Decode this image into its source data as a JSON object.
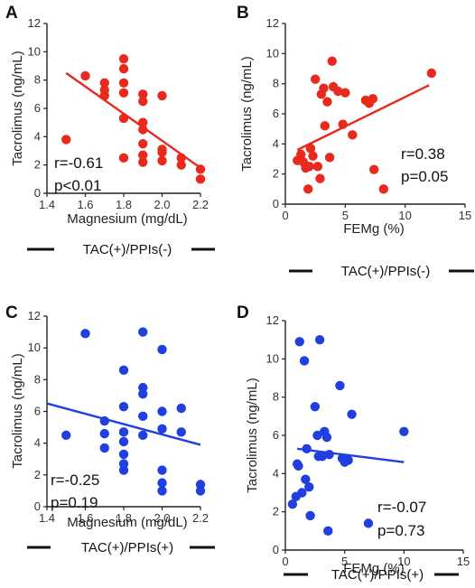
{
  "chart_data": [
    {
      "type": "scatter",
      "panel": "A",
      "xlabel": "Magnesium (mg/dL)",
      "ylabel": "Tacrolimus (ng/mL)",
      "xlim": [
        1.4,
        2.2
      ],
      "ylim": [
        0,
        12
      ],
      "xticks": [
        "1.4",
        "1.6",
        "1.8",
        "2.0",
        "2.2"
      ],
      "yticks": [
        "0",
        "2",
        "4",
        "6",
        "8",
        "10",
        "12"
      ],
      "color": "#e8291c",
      "stats": [
        "r=-0.61",
        "p<0.01"
      ],
      "group_label": "TAC(+)/PPIs(-)",
      "fit": [
        [
          1.5,
          8.5
        ],
        [
          2.2,
          1.8
        ]
      ],
      "points": [
        [
          1.5,
          3.8
        ],
        [
          1.6,
          8.3
        ],
        [
          1.7,
          7.8
        ],
        [
          1.7,
          7.3
        ],
        [
          1.7,
          6.9
        ],
        [
          1.8,
          9.5
        ],
        [
          1.8,
          8.8
        ],
        [
          1.8,
          7.8
        ],
        [
          1.8,
          7.1
        ],
        [
          1.8,
          5.3
        ],
        [
          1.8,
          2.5
        ],
        [
          1.9,
          7.0
        ],
        [
          1.9,
          6.5
        ],
        [
          1.9,
          5.0
        ],
        [
          1.9,
          4.5
        ],
        [
          1.9,
          3.5
        ],
        [
          1.9,
          2.7
        ],
        [
          1.9,
          2.2
        ],
        [
          2.0,
          6.9
        ],
        [
          2.0,
          3.1
        ],
        [
          2.0,
          2.9
        ],
        [
          2.0,
          2.3
        ],
        [
          2.1,
          2.5
        ],
        [
          2.1,
          2.0
        ],
        [
          2.2,
          1.7
        ],
        [
          2.2,
          1.0
        ]
      ]
    },
    {
      "type": "scatter",
      "panel": "B",
      "xlabel": "FEMg (%)",
      "ylabel": "Tacrolimus (ng/mL)",
      "xlim": [
        0,
        15
      ],
      "ylim": [
        0,
        12
      ],
      "xticks": [
        "0",
        "5",
        "10",
        "15"
      ],
      "yticks": [
        "0",
        "2",
        "4",
        "6",
        "8",
        "10",
        "12"
      ],
      "color": "#e8291c",
      "stats": [
        "r=0.38",
        "p=0.05"
      ],
      "group_label": "TAC(+)/PPIs(-)",
      "fit": [
        [
          1.0,
          3.6
        ],
        [
          12.0,
          7.9
        ]
      ],
      "points": [
        [
          1.0,
          2.9
        ],
        [
          1.3,
          3.3
        ],
        [
          1.5,
          2.8
        ],
        [
          1.7,
          2.4
        ],
        [
          1.9,
          1.0
        ],
        [
          2.0,
          2.5
        ],
        [
          2.1,
          3.7
        ],
        [
          2.3,
          3.2
        ],
        [
          2.5,
          8.3
        ],
        [
          2.7,
          2.5
        ],
        [
          2.9,
          1.7
        ],
        [
          3.0,
          7.3
        ],
        [
          3.2,
          7.7
        ],
        [
          3.3,
          5.2
        ],
        [
          3.5,
          6.8
        ],
        [
          3.7,
          3.1
        ],
        [
          3.9,
          9.5
        ],
        [
          4.0,
          7.8
        ],
        [
          4.4,
          7.5
        ],
        [
          4.8,
          5.3
        ],
        [
          5.0,
          7.4
        ],
        [
          5.6,
          4.6
        ],
        [
          6.7,
          6.9
        ],
        [
          7.0,
          6.7
        ],
        [
          7.3,
          7.0
        ],
        [
          7.4,
          2.3
        ],
        [
          8.2,
          1.0
        ],
        [
          12.2,
          8.7
        ]
      ]
    },
    {
      "type": "scatter",
      "panel": "C",
      "xlabel": "Magnesium (mg/dL)",
      "ylabel": "Tacrolimus (ng/mL)",
      "xlim": [
        1.4,
        2.2
      ],
      "ylim": [
        0,
        12
      ],
      "xticks": [
        "1.4",
        "1.6",
        "1.8",
        "2.0",
        "2.2"
      ],
      "yticks": [
        "0",
        "2",
        "4",
        "6",
        "8",
        "10",
        "12"
      ],
      "color": "#1f3fe0",
      "stats": [
        "r=-0.25",
        "p=0.19"
      ],
      "group_label": "TAC(+)/PPIs(+)",
      "fit": [
        [
          1.4,
          6.5
        ],
        [
          2.2,
          3.9
        ]
      ],
      "points": [
        [
          1.5,
          4.5
        ],
        [
          1.6,
          10.9
        ],
        [
          1.7,
          5.4
        ],
        [
          1.7,
          4.6
        ],
        [
          1.7,
          3.7
        ],
        [
          1.8,
          8.6
        ],
        [
          1.8,
          6.3
        ],
        [
          1.8,
          4.7
        ],
        [
          1.8,
          4.1
        ],
        [
          1.8,
          3.3
        ],
        [
          1.8,
          2.7
        ],
        [
          1.8,
          2.3
        ],
        [
          1.9,
          11.0
        ],
        [
          1.9,
          7.5
        ],
        [
          1.9,
          7.1
        ],
        [
          1.9,
          5.7
        ],
        [
          1.9,
          4.5
        ],
        [
          2.0,
          9.9
        ],
        [
          2.0,
          6.0
        ],
        [
          2.0,
          4.9
        ],
        [
          2.0,
          2.3
        ],
        [
          2.0,
          1.5
        ],
        [
          2.0,
          1.0
        ],
        [
          2.1,
          6.2
        ],
        [
          2.1,
          4.7
        ],
        [
          2.2,
          1.4
        ],
        [
          2.2,
          1.0
        ]
      ]
    },
    {
      "type": "scatter",
      "panel": "D",
      "xlabel": "FEMg (%)",
      "ylabel": "Tacrolimus (ng/mL)",
      "xlim": [
        0,
        15
      ],
      "ylim": [
        0,
        12
      ],
      "xticks": [
        "0",
        "5",
        "10",
        "15"
      ],
      "yticks": [
        "0",
        "2",
        "4",
        "6",
        "8",
        "10",
        "12"
      ],
      "color": "#1f3fe0",
      "stats": [
        "r=-0.07",
        "p=0.73"
      ],
      "group_label": "TAC(+)/PPIs(+)",
      "fit": [
        [
          1.0,
          5.3
        ],
        [
          10.0,
          4.6
        ]
      ],
      "points": [
        [
          0.6,
          2.4
        ],
        [
          0.9,
          2.8
        ],
        [
          1.0,
          4.5
        ],
        [
          1.1,
          4.4
        ],
        [
          1.2,
          10.9
        ],
        [
          1.4,
          3.0
        ],
        [
          1.6,
          9.9
        ],
        [
          1.7,
          3.7
        ],
        [
          1.8,
          5.3
        ],
        [
          2.0,
          3.3
        ],
        [
          2.1,
          1.8
        ],
        [
          2.5,
          7.5
        ],
        [
          2.7,
          6.0
        ],
        [
          2.8,
          4.9
        ],
        [
          2.9,
          11.0
        ],
        [
          3.1,
          4.9
        ],
        [
          3.3,
          6.2
        ],
        [
          3.5,
          5.9
        ],
        [
          3.6,
          1.0
        ],
        [
          3.7,
          5.0
        ],
        [
          4.6,
          8.6
        ],
        [
          4.8,
          4.8
        ],
        [
          5.0,
          4.6
        ],
        [
          5.3,
          4.7
        ],
        [
          5.6,
          7.1
        ],
        [
          7.0,
          1.4
        ],
        [
          10.0,
          6.2
        ]
      ]
    }
  ]
}
